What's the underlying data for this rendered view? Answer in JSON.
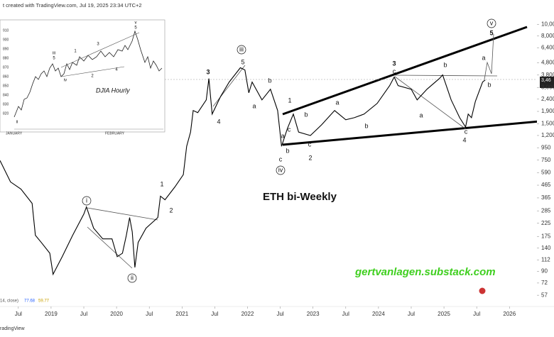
{
  "header": {
    "text": "t created with TradingView.com, Jul 19, 2025 23:34 UTC+2"
  },
  "chart_data": {
    "type": "line",
    "title": "ETH bi-Weekly",
    "watermark": "gertvanlagen.substack.com",
    "color": "#000000",
    "log_scale": true,
    "x": [
      2018.22,
      2018.38,
      2018.54,
      2018.71,
      2018.76,
      2018.85,
      2018.98,
      2019.03,
      2019.17,
      2019.33,
      2019.5,
      2019.54,
      2019.65,
      2019.79,
      2019.93,
      2020.01,
      2020.09,
      2020.15,
      2020.2,
      2020.24,
      2020.28,
      2020.33,
      2020.45,
      2020.63,
      2020.67,
      2020.74,
      2020.89,
      2021.02,
      2021.07,
      2021.13,
      2021.17,
      2021.24,
      2021.37,
      2021.41,
      2021.46,
      2021.59,
      2021.72,
      2021.89,
      2021.96,
      2022.02,
      2022.07,
      2022.22,
      2022.35,
      2022.46,
      2022.52,
      2022.61,
      2022.7,
      2022.78,
      2022.96,
      2023.13,
      2023.33,
      2023.5,
      2023.63,
      2023.78,
      2023.98,
      2024.17,
      2024.24,
      2024.3,
      2024.5,
      2024.59,
      2024.74,
      2024.93,
      2024.98,
      2025.11,
      2025.24,
      2025.33,
      2025.37,
      2025.42,
      2025.48,
      2025.59,
      2025.63
    ],
    "values": [
      745,
      495,
      432,
      329,
      179,
      156,
      127,
      85,
      119,
      179,
      268,
      307,
      205,
      167,
      167,
      119,
      127,
      179,
      251,
      191,
      97,
      156,
      205,
      251,
      377,
      352,
      450,
      568,
      977,
      1280,
      1930,
      1855,
      2365,
      3556,
      1805,
      2530,
      3325,
      4365,
      4190,
      2710,
      3325,
      2365,
      2900,
      1930,
      977,
      1375,
      1805,
      1280,
      1200,
      1470,
      1930,
      1620,
      1685,
      1805,
      2210,
      3105,
      3656,
      3105,
      2900,
      2365,
      2900,
      3556,
      3810,
      2365,
      1685,
      1410,
      1805,
      1685,
      2300,
      3325,
      3460
    ],
    "xlim": [
      2018.22,
      2026.42
    ],
    "xticks": [
      {
        "value": 2018.5,
        "label": "Jul"
      },
      2019,
      {
        "value": 2019.5,
        "label": "Jul"
      },
      2020,
      {
        "value": 2020.5,
        "label": "Jul"
      },
      2021,
      {
        "value": 2021.5,
        "label": "Jul"
      },
      2022,
      {
        "value": 2022.5,
        "label": "Jul"
      },
      2023,
      {
        "value": 2023.5,
        "label": "Jul"
      },
      2024,
      {
        "value": 2024.5,
        "label": "Jul"
      },
      2025,
      {
        "value": 2025.5,
        "label": "Jul"
      },
      2026
    ],
    "ylim": [
      46,
      15900
    ],
    "yticks": [
      {
        "value": 10000,
        "label": "10,000"
      },
      {
        "value": 8000,
        "label": "8,000"
      },
      {
        "value": 6400,
        "label": "6,400"
      },
      {
        "value": 4800,
        "label": "4,800"
      },
      {
        "value": 3800,
        "label": "3,800"
      },
      {
        "value": 3000,
        "label": "3,000"
      },
      {
        "value": 2400,
        "label": "2,400"
      },
      {
        "value": 1900,
        "label": "1,900"
      },
      {
        "value": 1500,
        "label": "1,500"
      },
      {
        "value": 1200,
        "label": "1,200"
      },
      950,
      750,
      590,
      465,
      365,
      285,
      225,
      175,
      140,
      112,
      90,
      72,
      57
    ],
    "price_label": "3,46",
    "wave_labels": [
      "i",
      "ii",
      "iii",
      "iv",
      "v",
      "1",
      "2",
      "3",
      "4",
      "5",
      "a",
      "b",
      "c",
      "1",
      "2",
      "a",
      "b",
      "c",
      "b",
      "c",
      "a",
      "b",
      "3",
      "c",
      "b",
      "a",
      "c",
      "4",
      "5",
      "a",
      "b"
    ]
  },
  "inset": {
    "title": "DJIA Hourly",
    "ylim": [
      812,
      916
    ],
    "yticks": [
      910,
      900,
      890,
      880,
      870,
      860,
      850,
      840,
      830,
      820
    ],
    "months": [
      "JANUARY",
      "FEBRUARY"
    ],
    "wave_labels": [
      "v",
      "5",
      "iii",
      "5",
      "iv",
      "ii",
      "1",
      "2",
      "3",
      "4"
    ]
  },
  "indicator": {
    "label": "14, close)",
    "values": [
      77.68,
      59.77
    ]
  },
  "footer": {
    "logo": "radingView"
  }
}
